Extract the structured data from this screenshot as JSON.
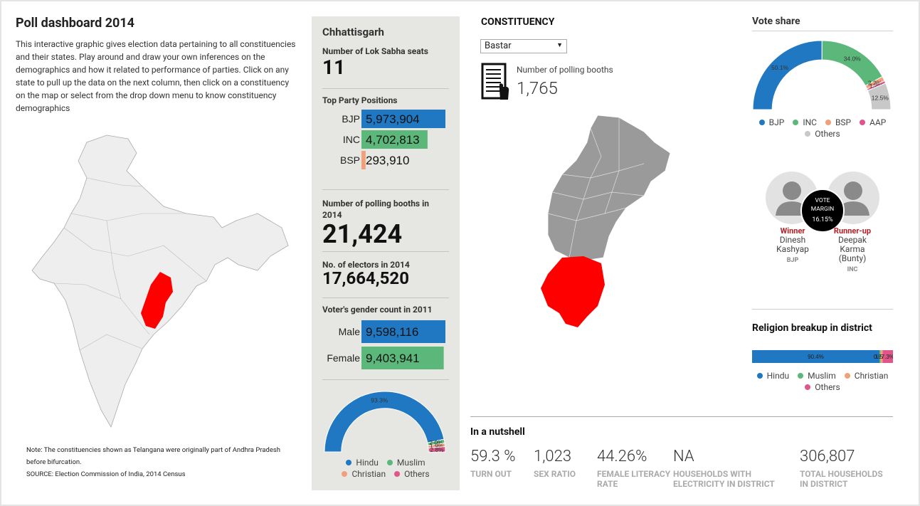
{
  "header": {
    "title": "Poll dashboard 2014",
    "description": "This interactive graphic gives election data pertaining to all constituencies and their states. Play around and draw your own inferences on the demographics and how it related to performance of parties. Click on any state to pull up the data on the next column, then click on a constituency on the map or select from the drop down menu to know constituency demographics"
  },
  "note": {
    "text": "Note: The constituencies shown as Telangana were originally part of Andhra Pradesh before bifurcation.",
    "source": "SOURCE: Election Commission of India, 2014 Census"
  },
  "state": {
    "name": "Chhattisgarh",
    "seats_label": "Number of Lok Sabha seats",
    "seats": "11",
    "party_label": "Top Party Positions",
    "booths_label": "Number of polling booths in 2014",
    "booths": "21,424",
    "electors_label": "No. of electors in 2014",
    "electors": "17,664,520",
    "gender_label": "Voter's gender count in 2011"
  },
  "constituency": {
    "heading": "CONSTITUENCY",
    "selected": "Bastar",
    "booths_label": "Number of polling booths",
    "booths": "1,765"
  },
  "candidates": {
    "winner_role": "Winner",
    "winner_name": "Dinesh Kashyap",
    "winner_party": "BJP",
    "runner_role": "Runner-up",
    "runner_name": "Deepak Karma (Bunty)",
    "runner_party": "INC",
    "margin_label": "VOTE MARGIN",
    "margin": "16.15%"
  },
  "nutshell": {
    "title": "In a nutshell",
    "items": [
      {
        "value": "59.3 %",
        "label": "TURN OUT"
      },
      {
        "value": "1,023",
        "label": "SEX RATIO"
      },
      {
        "value": "44.26%",
        "label": "FEMALE LITERACY RATE"
      },
      {
        "value": "NA",
        "label": "HOUSEHOLDS WITH ELECTRICITY IN DISTRICT"
      },
      {
        "value": "306,807",
        "label": "TOTAL HOUSEHOLDS IN DISTRICT"
      }
    ]
  },
  "chart_data": [
    {
      "type": "bar",
      "orientation": "horizontal",
      "categories": [
        "BJP",
        "INC",
        "BSP"
      ],
      "values": [
        5973904,
        4702813,
        293910
      ],
      "value_labels": [
        "5,973,904",
        "4,702,813",
        "293,910"
      ],
      "colors": [
        "#1f78c1",
        "#5cb87a",
        "#f0a07a"
      ]
    },
    {
      "type": "bar",
      "orientation": "horizontal",
      "categories": [
        "Male",
        "Female"
      ],
      "values": [
        9598116,
        9403941
      ],
      "value_labels": [
        "9,598,116",
        "9,403,941"
      ],
      "colors": [
        "#1f78c1",
        "#5cb87a"
      ]
    },
    {
      "type": "pie",
      "half": true,
      "donut": true,
      "categories": [
        "Hindu",
        "Muslim",
        "Christian",
        "Others"
      ],
      "values": [
        93.3,
        2.0,
        1.9,
        2.8
      ],
      "value_labels": [
        "93.3%",
        "2.0%",
        "1.9%",
        "2.8%"
      ],
      "colors": [
        "#1f78c1",
        "#5cb87a",
        "#f0a07a",
        "#e0558a"
      ]
    },
    {
      "type": "pie",
      "half": true,
      "donut": true,
      "title": "Vote share",
      "categories": [
        "BJP",
        "INC",
        "BSP",
        "AAP",
        "Others"
      ],
      "values": [
        50.1,
        34.0,
        2.2,
        1.2,
        12.5
      ],
      "value_labels": [
        "50.1%",
        "34.0%",
        "2.2%",
        "1.2%",
        "12.5%"
      ],
      "colors": [
        "#1f78c1",
        "#5cb87a",
        "#f0a07a",
        "#e0558a",
        "#c8c8c8"
      ]
    },
    {
      "type": "stacked-bar",
      "title": "Religion breakup in district",
      "categories": [
        "Hindu",
        "Muslim",
        "Christian",
        "Others"
      ],
      "values": [
        90.4,
        0.8,
        1.5,
        7.3
      ],
      "value_labels": [
        "90.4%",
        "0.8%",
        "1.5%",
        "7.3%"
      ],
      "colors": [
        "#1f78c1",
        "#5cb87a",
        "#f0a07a",
        "#e0558a"
      ]
    }
  ]
}
